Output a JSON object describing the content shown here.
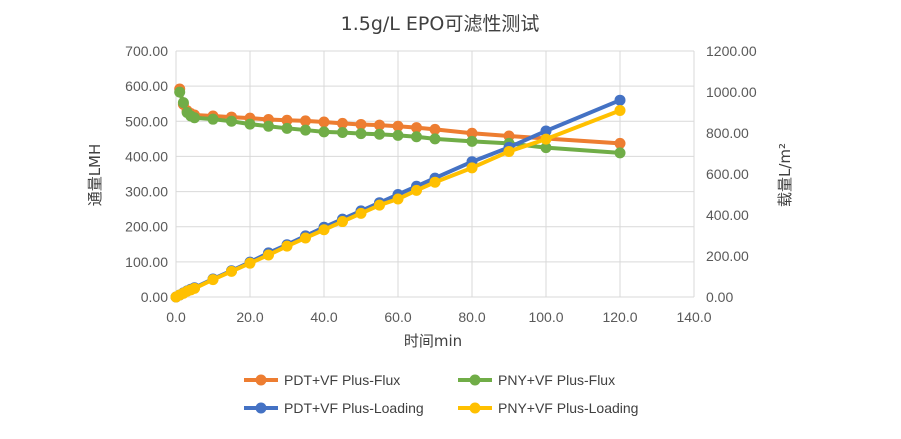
{
  "chart_data": {
    "type": "line",
    "title": "1.5g/L EPO可滤性测试",
    "xlabel": "时间min",
    "ylabel_left": "通量LMH",
    "ylabel_right": "载量L/m²",
    "xlim": [
      0,
      140
    ],
    "ylim_left": [
      0,
      700
    ],
    "ylim_right": [
      0,
      1200
    ],
    "x_ticks": [
      "0.0",
      "20.0",
      "40.0",
      "60.0",
      "80.0",
      "100.0",
      "120.0",
      "140.0"
    ],
    "y_left_ticks": [
      "0.00",
      "100.00",
      "200.00",
      "300.00",
      "400.00",
      "500.00",
      "600.00",
      "700.00"
    ],
    "y_right_ticks": [
      "0.00",
      "200.00",
      "400.00",
      "600.00",
      "800.00",
      "1000.00",
      "1200.00"
    ],
    "grid": "horizontal",
    "legend_position": "bottom",
    "series": [
      {
        "name": "PDT+VF Plus-Flux",
        "axis": "left",
        "color": "#ED7D31",
        "x": [
          1,
          2,
          3,
          4,
          5,
          10,
          15,
          20,
          25,
          30,
          35,
          40,
          45,
          50,
          55,
          60,
          65,
          70,
          80,
          90,
          100,
          120
        ],
        "y": [
          592,
          548,
          530,
          522,
          518,
          515,
          512,
          509,
          505,
          503,
          501,
          498,
          494,
          491,
          489,
          486,
          482,
          477,
          466,
          458,
          451,
          437
        ]
      },
      {
        "name": "PNY+VF Plus-Flux",
        "axis": "left",
        "color": "#70AD47",
        "x": [
          1,
          2,
          3,
          4,
          5,
          10,
          15,
          20,
          25,
          30,
          35,
          40,
          45,
          50,
          55,
          60,
          65,
          70,
          80,
          90,
          100,
          120
        ],
        "y": [
          583,
          553,
          525,
          515,
          510,
          506,
          500,
          492,
          486,
          480,
          475,
          470,
          468,
          465,
          463,
          460,
          456,
          450,
          443,
          437,
          425,
          410
        ]
      },
      {
        "name": "PDT+VF Plus-Loading",
        "axis": "right",
        "color": "#4472C4",
        "x": [
          0,
          1,
          2,
          3,
          4,
          5,
          10,
          15,
          20,
          25,
          30,
          35,
          40,
          45,
          50,
          55,
          60,
          65,
          70,
          80,
          90,
          100,
          120
        ],
        "y": [
          0,
          10,
          20,
          30,
          38,
          45,
          88,
          128,
          170,
          215,
          255,
          298,
          340,
          380,
          420,
          460,
          500,
          540,
          580,
          660,
          730,
          810,
          960
        ]
      },
      {
        "name": "PNY+VF Plus-Loading",
        "axis": "right",
        "color": "#FFC000",
        "x": [
          0,
          1,
          2,
          3,
          4,
          5,
          10,
          15,
          20,
          25,
          30,
          35,
          40,
          45,
          50,
          55,
          60,
          65,
          70,
          80,
          90,
          100,
          120
        ],
        "y": [
          0,
          10,
          18,
          28,
          35,
          42,
          85,
          125,
          165,
          205,
          248,
          288,
          328,
          368,
          408,
          448,
          478,
          520,
          560,
          630,
          710,
          770,
          910
        ]
      }
    ]
  }
}
